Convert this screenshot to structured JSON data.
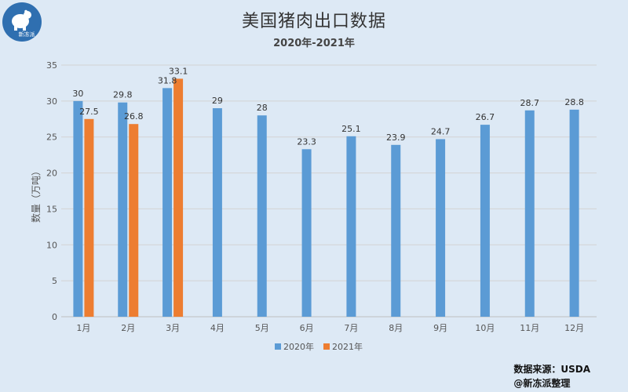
{
  "title": "美国猪肉出口数据",
  "subtitle": "2020年-2021年",
  "logo": {
    "text": "新冻派",
    "icon": "polar-bear-icon",
    "color": "#2f6fb0"
  },
  "source": {
    "line1": "数据来源：USDA",
    "line2": "@新冻派整理"
  },
  "chart_data": {
    "type": "bar",
    "categories": [
      "1月",
      "2月",
      "3月",
      "4月",
      "5月",
      "6月",
      "7月",
      "8月",
      "9月",
      "10月",
      "11月",
      "12月"
    ],
    "series": [
      {
        "name": "2020年",
        "color": "#5b9bd5",
        "values": [
          30,
          29.8,
          31.8,
          29,
          28,
          23.3,
          25.1,
          23.9,
          24.7,
          26.7,
          28.7,
          28.8
        ]
      },
      {
        "name": "2021年",
        "color": "#ed7d31",
        "values": [
          27.5,
          26.8,
          33.1,
          null,
          null,
          null,
          null,
          null,
          null,
          null,
          null,
          null
        ]
      }
    ],
    "ylabel": "数量（万吨）",
    "ylim": [
      0,
      35
    ],
    "yticks": [
      0,
      5,
      10,
      15,
      20,
      25,
      30,
      35
    ],
    "grid": true,
    "legend": "bottom"
  }
}
